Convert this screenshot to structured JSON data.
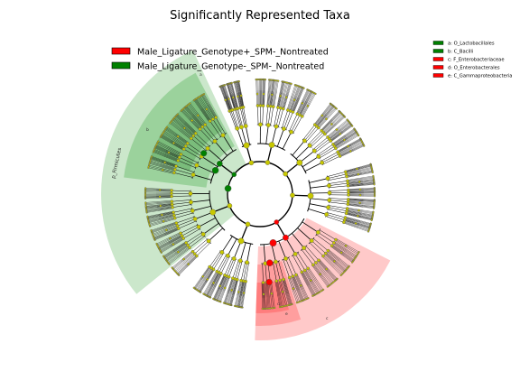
{
  "figure": {
    "title": "Significantly Represented Taxa"
  },
  "colors": {
    "group_plus": "#ff0000",
    "group_minus": "#008000",
    "node_default": "#c8c800",
    "highlight_red": "#ff6666",
    "highlight_green": "#4caf50"
  },
  "legend": [
    {
      "label": "Male_Ligature_Genotype+_SPM-_Nontreated",
      "color": "#ff0000"
    },
    {
      "label": "Male_Ligature_Genotype-_SPM-_Nontreated",
      "color": "#008000"
    }
  ],
  "clade_key": [
    {
      "label": "a: O_Lactobacillales",
      "color": "#008000"
    },
    {
      "label": "b: C_Bacilli",
      "color": "#008000"
    },
    {
      "label": "c: F_Enterobacteriaceae",
      "color": "#ff0000"
    },
    {
      "label": "d: O_Enterobacterales",
      "color": "#ff0000"
    },
    {
      "label": "e: C_Gammaproteobacteria",
      "color": "#ff0000"
    }
  ],
  "chart_data": {
    "type": "cladogram",
    "title": "Significantly Represented Taxa",
    "series": [
      {
        "name": "Male_Ligature_Genotype+_SPM-_Nontreated",
        "color": "#ff0000",
        "clades": [
          "c",
          "d",
          "e"
        ]
      },
      {
        "name": "Male_Ligature_Genotype-_SPM-_Nontreated",
        "color": "#008000",
        "clades": [
          "a",
          "b",
          "p_Firmicutes"
        ]
      }
    ],
    "highlighted_clades": [
      {
        "letter": "p_Firmicutes",
        "label": "p_Firmicutes",
        "group": "Male_Ligature_Genotype-_SPM-_Nontreated"
      },
      {
        "letter": "b",
        "label": "",
        "group": "Male_Ligature_Genotype-_SPM-_Nontreated"
      },
      {
        "letter": "a",
        "label": "",
        "group": "Male_Ligature_Genotype-_SPM-_Nontreated"
      },
      {
        "letter": "e",
        "label": "",
        "group": "Male_Ligature_Genotype+_SPM-_Nontreated"
      },
      {
        "letter": "d",
        "label": "",
        "group": "Male_Ligature_Genotype+_SPM-_Nontreated"
      },
      {
        "letter": "c",
        "label": "",
        "group": "Male_Ligature_Genotype+_SPM-_Nontreated"
      }
    ]
  }
}
